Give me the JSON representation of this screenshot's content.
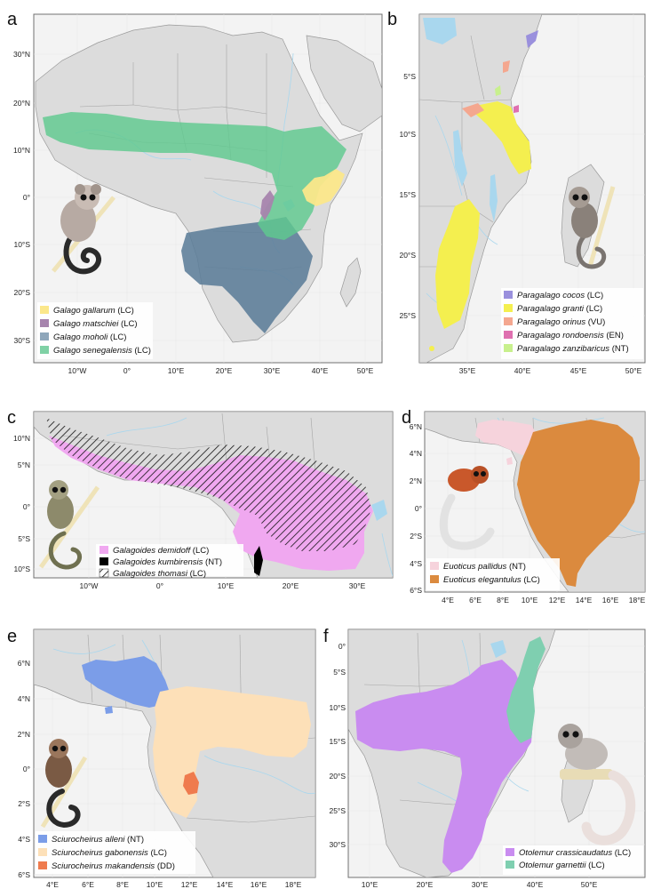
{
  "panels": [
    {
      "label": "a",
      "x_ticks": [
        "10°W",
        "0°",
        "10°E",
        "20°E",
        "30°E",
        "40°E",
        "50°E"
      ],
      "y_ticks": [
        "30°N",
        "20°N",
        "10°N",
        "0°",
        "10°S",
        "20°S",
        "30°S"
      ],
      "legend": [
        {
          "genus": "Galago",
          "epithet": "gallarum",
          "status": "(LC)",
          "color": "#fbe78a"
        },
        {
          "genus": "Galago",
          "epithet": "matschiei",
          "status": "(LC)",
          "color": "#a684ad"
        },
        {
          "genus": "Galago",
          "epithet": "moholi",
          "status": "(LC)",
          "color": "#8ea6ba"
        },
        {
          "genus": "Galago",
          "epithet": "senegalensis",
          "status": "(LC)",
          "color": "#7fd1a5"
        }
      ]
    },
    {
      "label": "b",
      "x_ticks": [
        "35°E",
        "40°E",
        "45°E",
        "50°E"
      ],
      "y_ticks": [
        "5°S",
        "10°S",
        "15°S",
        "20°S",
        "25°S"
      ],
      "legend": [
        {
          "genus": "Paragalago",
          "epithet": "cocos",
          "status": "(LC)",
          "color": "#9a90dd"
        },
        {
          "genus": "Paragalago",
          "epithet": "granti",
          "status": "(LC)",
          "color": "#f4ef4f"
        },
        {
          "genus": "Paragalago",
          "epithet": "orinus",
          "status": "(VU)",
          "color": "#f4a78f"
        },
        {
          "genus": "Paragalago",
          "epithet": "rondoensis",
          "status": "(EN)",
          "color": "#df70b0"
        },
        {
          "genus": "Paragalago",
          "epithet": "zanzibaricus",
          "status": "(NT)",
          "color": "#c8f08d"
        }
      ]
    },
    {
      "label": "c",
      "x_ticks": [
        "10°W",
        "0°",
        "10°E",
        "20°E",
        "30°E"
      ],
      "y_ticks": [
        "10°N",
        "5°N",
        "0°",
        "5°S",
        "10°S"
      ],
      "legend": [
        {
          "genus": "Galagoides",
          "epithet": "demidoff",
          "status": "(LC)",
          "color": "#f0a8f0"
        },
        {
          "genus": "Galagoides",
          "epithet": "kumbirensis",
          "status": "(NT)",
          "color": "#000000"
        },
        {
          "genus": "Galagoides",
          "epithet": "thomasi",
          "status": "(LC)",
          "color": "hatch"
        }
      ]
    },
    {
      "label": "d",
      "x_ticks": [
        "4°E",
        "6°E",
        "8°E",
        "10°E",
        "12°E",
        "14°E",
        "16°E",
        "18°E"
      ],
      "y_ticks": [
        "6°N",
        "4°N",
        "2°N",
        "0°",
        "2°S",
        "4°S",
        "6°S"
      ],
      "legend": [
        {
          "genus": "Euoticus",
          "epithet": "pallidus",
          "status": "(NT)",
          "color": "#f6d3dc"
        },
        {
          "genus": "Euoticus",
          "epithet": "elegantulus",
          "status": "(LC)",
          "color": "#db8a3e"
        }
      ]
    },
    {
      "label": "e",
      "x_ticks": [
        "4°E",
        "6°E",
        "8°E",
        "10°E",
        "12°E",
        "14°E",
        "16°E",
        "18°E"
      ],
      "y_ticks": [
        "6°N",
        "4°N",
        "2°N",
        "0°",
        "2°S",
        "4°S",
        "6°S"
      ],
      "legend": [
        {
          "genus": "Sciurocheirus",
          "epithet": "alleni",
          "status": "(NT)",
          "color": "#7b9de8"
        },
        {
          "genus": "Sciurocheirus",
          "epithet": "gabonensis",
          "status": "(LC)",
          "color": "#fde0b8"
        },
        {
          "genus": "Sciurocheirus",
          "epithet": "makandensis",
          "status": "(DD)",
          "color": "#ef7b4e"
        }
      ]
    },
    {
      "label": "f",
      "x_ticks": [
        "10°E",
        "20°E",
        "30°E",
        "40°E",
        "50°E"
      ],
      "y_ticks": [
        "0°",
        "5°S",
        "10°S",
        "15°S",
        "20°S",
        "25°S",
        "30°S"
      ],
      "legend": [
        {
          "genus": "Otolemur",
          "epithet": "crassicaudatus",
          "status": "(LC)",
          "color": "#c98cf0"
        },
        {
          "genus": "Otolemur",
          "epithet": "garnettii",
          "status": "(LC)",
          "color": "#7fcfb0"
        }
      ]
    }
  ]
}
